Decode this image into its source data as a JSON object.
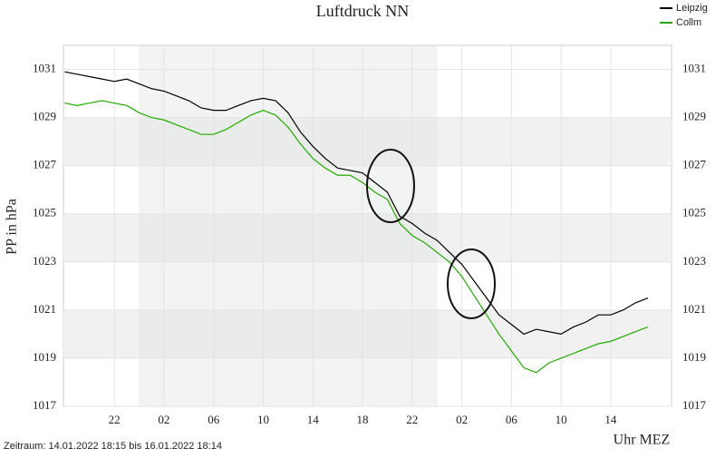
{
  "chart_data": {
    "type": "line",
    "title": "Luftdruck NN",
    "y_label": "PP in hPa",
    "x_label": "Uhr MEZ",
    "footer": "Zeitraum: 14.01.2022 18:15 bis 16.01.2022 18:14",
    "categories": [
      null,
      null,
      null,
      null,
      "22",
      null,
      null,
      null,
      "02",
      null,
      null,
      null,
      "06",
      null,
      null,
      null,
      "10",
      null,
      null,
      null,
      "14",
      null,
      null,
      null,
      "18",
      null,
      null,
      null,
      "22",
      null,
      null,
      null,
      "02",
      null,
      null,
      null,
      "06",
      null,
      null,
      null,
      "10",
      null,
      null,
      null,
      "14",
      null,
      null,
      null
    ],
    "series": [
      {
        "name": "Leipzig",
        "color": "#000000",
        "values": [
          1030.9,
          1030.8,
          1030.7,
          1030.6,
          1030.5,
          1030.6,
          1030.4,
          1030.2,
          1030.1,
          1029.9,
          1029.7,
          1029.4,
          1029.3,
          1029.3,
          1029.5,
          1029.7,
          1029.8,
          1029.7,
          1029.2,
          1028.4,
          1027.8,
          1027.3,
          1026.9,
          1026.8,
          1026.7,
          1026.3,
          1025.9,
          1024.9,
          1024.6,
          1024.2,
          1023.9,
          1023.4,
          1022.9,
          1022.2,
          1021.5,
          1020.8,
          1020.4,
          1020.0,
          1020.2,
          1020.1,
          1020.0,
          1020.3,
          1020.5,
          1020.8,
          1020.8,
          1021.0,
          1021.3,
          1021.5
        ]
      },
      {
        "name": "Collm",
        "color": "#22aa00",
        "values": [
          1029.6,
          1029.5,
          1029.6,
          1029.7,
          1029.6,
          1029.5,
          1029.2,
          1029.0,
          1028.9,
          1028.7,
          1028.5,
          1028.3,
          1028.3,
          1028.5,
          1028.8,
          1029.1,
          1029.3,
          1029.1,
          1028.6,
          1027.9,
          1027.3,
          1026.9,
          1026.6,
          1026.6,
          1026.3,
          1025.9,
          1025.6,
          1024.6,
          1024.1,
          1023.8,
          1023.4,
          1023.0,
          1022.4,
          1021.6,
          1020.8,
          1020.0,
          1019.3,
          1018.6,
          1018.4,
          1018.8,
          1019.0,
          1019.2,
          1019.4,
          1019.6,
          1019.7,
          1019.9,
          1020.1,
          1020.3
        ]
      }
    ],
    "ylim": [
      1017,
      1032
    ],
    "yticks": [
      1017,
      1019,
      1021,
      1023,
      1025,
      1027,
      1029,
      1031
    ],
    "grid": true,
    "legend": "upper right"
  }
}
